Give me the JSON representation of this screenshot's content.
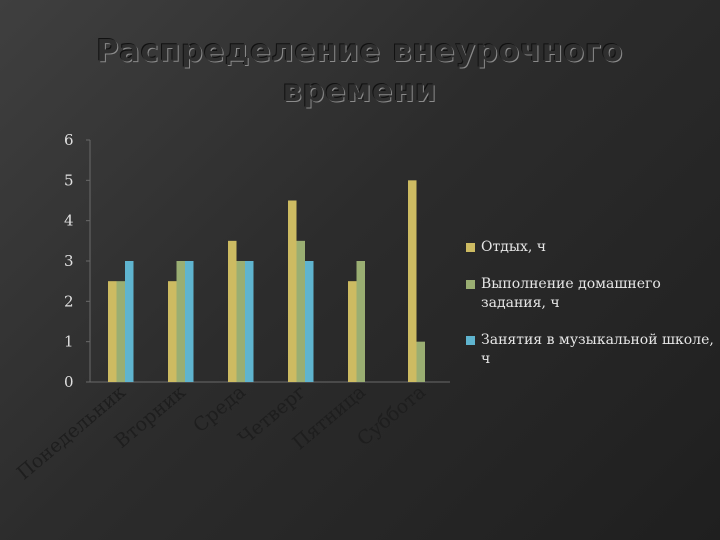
{
  "chart_data": {
    "type": "bar",
    "title_lines": [
      "Распределение внеурочного",
      "времени"
    ],
    "categories": [
      "Понедельник",
      "Вторник",
      "Среда",
      "Четверг",
      "Пятница",
      "Суббота"
    ],
    "series": [
      {
        "name": "Отдых, ч",
        "color": "#cdbb62",
        "values": [
          2.5,
          2.5,
          3.5,
          4.5,
          2.5,
          5
        ]
      },
      {
        "name": "Выполнение домашнего задания, ч",
        "color": "#9aae72",
        "values": [
          2.5,
          3,
          3,
          3.5,
          3,
          1
        ]
      },
      {
        "name": "Занятия в музыкальной школе, ч",
        "color": "#5fb4cf",
        "values": [
          3,
          3,
          3,
          3,
          0,
          0
        ]
      }
    ],
    "y_ticks": [
      "0",
      "1",
      "2",
      "3",
      "4",
      "5",
      "6"
    ],
    "ylim": [
      0,
      6
    ],
    "grid": false,
    "legend_position": "right"
  }
}
